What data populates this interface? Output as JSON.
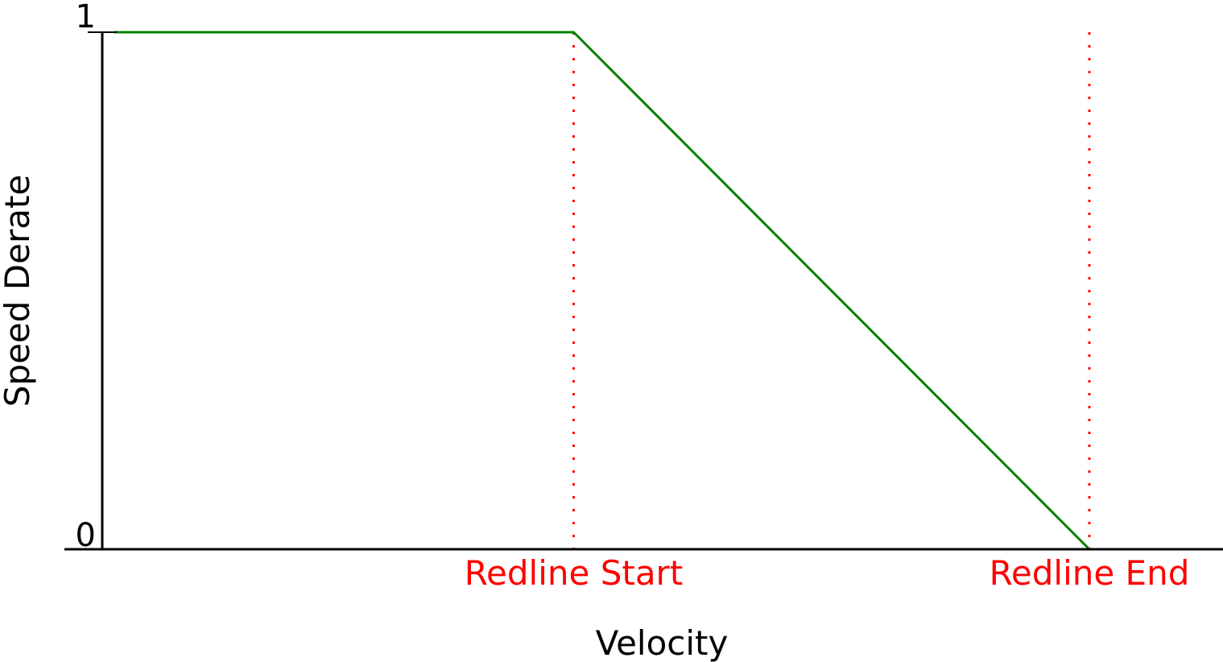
{
  "chart_data": {
    "type": "line",
    "title": "",
    "xlabel": "Velocity",
    "ylabel": "Speed Derate",
    "yticks": [
      {
        "value": 0,
        "label": "0"
      },
      {
        "value": 1,
        "label": "1"
      }
    ],
    "xlim": [
      0,
      1
    ],
    "ylim": [
      0,
      1
    ],
    "grid": false,
    "series": [
      {
        "x": [
          0,
          0.4776,
          1.0,
          1.1362
        ],
        "y": [
          1,
          1,
          0,
          0
        ],
        "color": "#008000"
      }
    ],
    "markers": [
      {
        "label": "Redline Start",
        "x": 0.4776,
        "color": "#ff0000"
      },
      {
        "label": "Redline End",
        "x": 1.0,
        "color": "#ff0000"
      }
    ]
  }
}
